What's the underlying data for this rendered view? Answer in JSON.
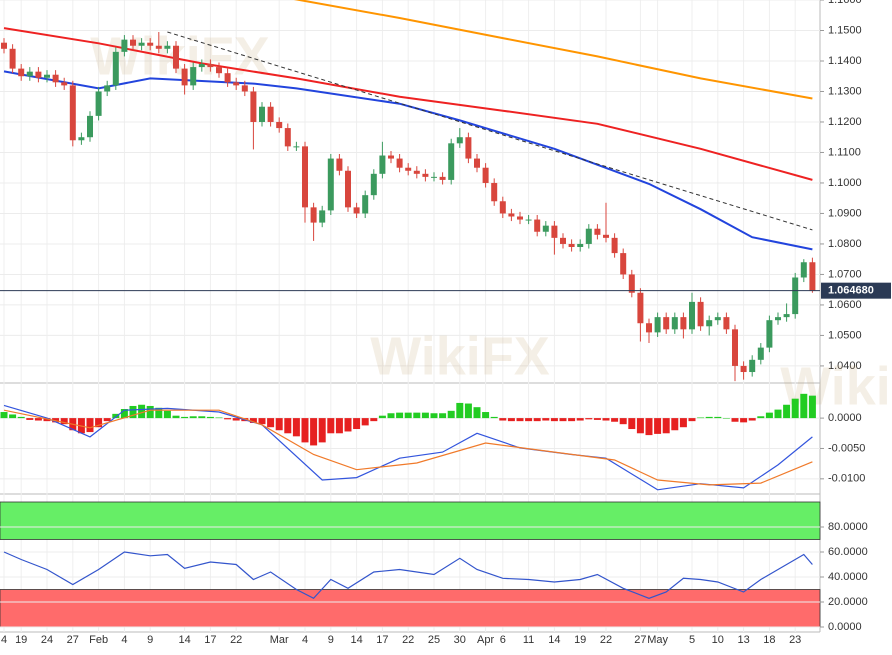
{
  "chart_data": [
    {
      "type": "candlestick",
      "categories": [
        "4",
        null,
        "19",
        null,
        null,
        "24",
        null,
        null,
        "27",
        null,
        null,
        "Feb",
        null,
        null,
        "4",
        null,
        null,
        "9",
        null,
        null,
        null,
        "14",
        null,
        null,
        "17",
        null,
        null,
        "22",
        null,
        null,
        null,
        null,
        "Mar",
        null,
        null,
        "4",
        null,
        null,
        "9",
        null,
        null,
        "14",
        null,
        null,
        "17",
        null,
        null,
        "22",
        null,
        null,
        "25",
        null,
        null,
        "30",
        null,
        null,
        "Apr",
        null,
        "6",
        null,
        null,
        "11",
        null,
        null,
        "14",
        null,
        null,
        "19",
        null,
        null,
        "22",
        null,
        null,
        null,
        "27",
        null,
        "May",
        null,
        null,
        null,
        "5",
        null,
        null,
        "10",
        null,
        null,
        "13",
        null,
        null,
        "18",
        null,
        null,
        "23",
        null,
        null
      ],
      "ohlc": [
        [
          1.146,
          1.1475,
          1.1425,
          1.144
        ],
        [
          1.144,
          1.1455,
          1.136,
          1.1375
        ],
        [
          1.1375,
          1.139,
          1.1335,
          1.135
        ],
        [
          1.135,
          1.138,
          1.1335,
          1.1365
        ],
        [
          1.1365,
          1.138,
          1.133,
          1.1345
        ],
        [
          1.1345,
          1.137,
          1.133,
          1.1355
        ],
        [
          1.1355,
          1.137,
          1.1315,
          1.133
        ],
        [
          1.133,
          1.1345,
          1.1305,
          1.132
        ],
        [
          1.132,
          1.1335,
          1.112,
          1.114
        ],
        [
          1.114,
          1.1165,
          1.1125,
          1.115
        ],
        [
          1.115,
          1.1235,
          1.1135,
          1.122
        ],
        [
          1.122,
          1.1315,
          1.1205,
          1.13
        ],
        [
          1.13,
          1.1335,
          1.1285,
          1.132
        ],
        [
          1.132,
          1.1445,
          1.1305,
          1.143
        ],
        [
          1.143,
          1.1485,
          1.1415,
          1.147
        ],
        [
          1.147,
          1.1485,
          1.1435,
          1.145
        ],
        [
          1.145,
          1.1475,
          1.1435,
          1.146
        ],
        [
          1.146,
          1.1475,
          1.1435,
          1.145
        ],
        [
          1.145,
          1.1495,
          1.1425,
          1.144
        ],
        [
          1.144,
          1.1465,
          1.1425,
          1.145
        ],
        [
          1.145,
          1.1465,
          1.136,
          1.1375
        ],
        [
          1.1375,
          1.139,
          1.129,
          1.132
        ],
        [
          1.132,
          1.1395,
          1.1305,
          1.138
        ],
        [
          1.138,
          1.1405,
          1.1365,
          1.139
        ],
        [
          1.139,
          1.1405,
          1.1365,
          1.138
        ],
        [
          1.138,
          1.1395,
          1.1345,
          1.136
        ],
        [
          1.136,
          1.1375,
          1.1315,
          1.133
        ],
        [
          1.133,
          1.1345,
          1.1305,
          1.132
        ],
        [
          1.132,
          1.1335,
          1.1285,
          1.13
        ],
        [
          1.13,
          1.1315,
          1.111,
          1.12
        ],
        [
          1.12,
          1.1265,
          1.1185,
          1.125
        ],
        [
          1.125,
          1.1265,
          1.1185,
          1.12
        ],
        [
          1.12,
          1.1215,
          1.1165,
          1.118
        ],
        [
          1.118,
          1.1195,
          1.1105,
          1.112
        ],
        [
          1.112,
          1.1135,
          1.1105,
          1.112
        ],
        [
          1.112,
          1.1135,
          1.087,
          1.092
        ],
        [
          1.092,
          1.0935,
          1.081,
          1.087
        ],
        [
          1.087,
          1.0925,
          1.0855,
          1.091
        ],
        [
          1.091,
          1.1095,
          1.0895,
          1.108
        ],
        [
          1.108,
          1.1095,
          1.1025,
          1.104
        ],
        [
          1.104,
          1.1055,
          1.0905,
          1.092
        ],
        [
          1.092,
          1.0935,
          1.0885,
          1.09
        ],
        [
          1.09,
          1.0975,
          1.0885,
          1.096
        ],
        [
          1.096,
          1.1045,
          1.0945,
          1.103
        ],
        [
          1.103,
          1.1135,
          1.1015,
          1.109
        ],
        [
          1.109,
          1.1105,
          1.1065,
          1.108
        ],
        [
          1.108,
          1.1095,
          1.1035,
          1.105
        ],
        [
          1.105,
          1.1065,
          1.1025,
          1.104
        ],
        [
          1.104,
          1.1055,
          1.1015,
          1.103
        ],
        [
          1.103,
          1.1045,
          1.1005,
          1.102
        ],
        [
          1.102,
          1.1035,
          1.1005,
          1.102
        ],
        [
          1.102,
          1.1035,
          1.0995,
          1.101
        ],
        [
          1.101,
          1.1145,
          1.0995,
          1.113
        ],
        [
          1.113,
          1.118,
          1.1115,
          1.115
        ],
        [
          1.115,
          1.1165,
          1.1065,
          1.108
        ],
        [
          1.108,
          1.1095,
          1.1035,
          1.105
        ],
        [
          1.105,
          1.1065,
          1.0985,
          1.1
        ],
        [
          1.1,
          1.1015,
          1.0925,
          1.094
        ],
        [
          1.094,
          1.0955,
          1.0885,
          1.09
        ],
        [
          1.09,
          1.0915,
          1.0875,
          1.089
        ],
        [
          1.089,
          1.0905,
          1.0865,
          1.088
        ],
        [
          1.088,
          1.0895,
          1.0865,
          1.088
        ],
        [
          1.088,
          1.0895,
          1.0825,
          1.084
        ],
        [
          1.084,
          1.0875,
          1.0825,
          1.086
        ],
        [
          1.086,
          1.0875,
          1.0765,
          1.082
        ],
        [
          1.082,
          1.0835,
          1.0785,
          1.08
        ],
        [
          1.08,
          1.0815,
          1.0775,
          1.079
        ],
        [
          1.079,
          1.0815,
          1.0775,
          1.08
        ],
        [
          1.08,
          1.0865,
          1.0785,
          1.085
        ],
        [
          1.085,
          1.0865,
          1.0815,
          1.083
        ],
        [
          1.083,
          1.0935,
          1.0805,
          1.082
        ],
        [
          1.082,
          1.0835,
          1.0755,
          1.077
        ],
        [
          1.077,
          1.0785,
          1.0685,
          1.07
        ],
        [
          1.07,
          1.0715,
          1.0625,
          1.064
        ],
        [
          1.064,
          1.0655,
          1.048,
          1.054
        ],
        [
          1.054,
          1.0555,
          1.0475,
          1.051
        ],
        [
          1.051,
          1.0575,
          1.0495,
          1.056
        ],
        [
          1.056,
          1.0575,
          1.0505,
          1.052
        ],
        [
          1.052,
          1.0575,
          1.0505,
          1.056
        ],
        [
          1.056,
          1.0575,
          1.049,
          1.052
        ],
        [
          1.052,
          1.064,
          1.0505,
          1.061
        ],
        [
          1.061,
          1.0625,
          1.0515,
          1.053
        ],
        [
          1.053,
          1.0565,
          1.05,
          1.055
        ],
        [
          1.055,
          1.0575,
          1.0535,
          1.056
        ],
        [
          1.056,
          1.0575,
          1.0505,
          1.052
        ],
        [
          1.052,
          1.0535,
          1.035,
          1.04
        ],
        [
          1.04,
          1.0415,
          1.0355,
          1.038
        ],
        [
          1.038,
          1.0435,
          1.0365,
          1.042
        ],
        [
          1.042,
          1.0475,
          1.0405,
          1.046
        ],
        [
          1.046,
          1.0565,
          1.0445,
          1.055
        ],
        [
          1.055,
          1.0575,
          1.0535,
          1.056
        ],
        [
          1.056,
          1.0605,
          1.0545,
          1.057
        ],
        [
          1.057,
          1.0705,
          1.0555,
          1.069
        ],
        [
          1.069,
          1.075,
          1.0675,
          1.074
        ],
        [
          1.074,
          1.0755,
          1.064,
          1.06468
        ]
      ],
      "up_color": "#3b9a5e",
      "down_color": "#d8463d",
      "lines": [
        {
          "color": "#ff9500",
          "x": [
            33,
            46,
            58,
            69,
            81,
            94
          ],
          "values": [
            1.1607,
            1.1541,
            1.1475,
            1.1415,
            1.1343,
            1.1277
          ]
        },
        {
          "color": "#ee2222",
          "x": [
            0,
            11,
            23,
            34,
            46,
            58,
            69,
            81,
            94
          ],
          "values": [
            1.1508,
            1.1458,
            1.1392,
            1.1343,
            1.1283,
            1.1237,
            1.1194,
            1.1112,
            1.101
          ]
        },
        {
          "color": "#2244dd",
          "x": [
            0,
            11,
            17,
            29,
            34,
            46,
            53,
            64,
            75,
            81,
            87,
            94
          ],
          "values": [
            1.1366,
            1.131,
            1.1343,
            1.1326,
            1.131,
            1.126,
            1.1205,
            1.1112,
            1.0997,
            1.0914,
            1.0822,
            1.0782
          ]
        }
      ],
      "trendline": {
        "x": [
          19,
          94
        ],
        "values": [
          1.1495,
          1.0846
        ]
      },
      "last_price": {
        "value": 1.06468,
        "label": "1.064680"
      },
      "watermark": "WikiFX",
      "ylim": [
        1.0344,
        1.16
      ],
      "yticks": [
        {
          "value": 1.04,
          "label": "1.0400"
        },
        {
          "value": 1.05,
          "label": "1.0500"
        },
        {
          "value": 1.06,
          "label": "1.0600"
        },
        {
          "value": 1.07,
          "label": "1.0700"
        },
        {
          "value": 1.08,
          "label": "1.0800"
        },
        {
          "value": 1.09,
          "label": "1.0900"
        },
        {
          "value": 1.1,
          "label": "1.1000"
        },
        {
          "value": 1.11,
          "label": "1.1100"
        },
        {
          "value": 1.12,
          "label": "1.1200"
        },
        {
          "value": 1.13,
          "label": "1.1300"
        },
        {
          "value": 1.14,
          "label": "1.1400"
        },
        {
          "value": 1.15,
          "label": "1.1500"
        },
        {
          "value": 1.16,
          "label": "1.1600"
        }
      ],
      "grid": true
    },
    {
      "type": "macd",
      "histogram": [
        0.001,
        0.0006,
        0.0002,
        -0.0003,
        -0.0004,
        -0.0005,
        -0.0007,
        -0.001,
        -0.002,
        -0.0025,
        -0.0023,
        -0.0015,
        -0.0005,
        0.0007,
        0.0015,
        0.002,
        0.0022,
        0.002,
        0.0017,
        0.0012,
        0.0004,
        0.0002,
        0.0003,
        0.0003,
        0.0002,
        0.0001,
        -0.0002,
        -0.0004,
        -0.0005,
        -0.0008,
        -0.001,
        -0.0015,
        -0.002,
        -0.0025,
        -0.003,
        -0.004,
        -0.0045,
        -0.004,
        -0.0025,
        -0.0025,
        -0.0022,
        -0.0018,
        -0.0012,
        -0.0005,
        0.0004,
        0.0008,
        0.0009,
        0.0009,
        0.0009,
        0.0009,
        0.0008,
        0.0008,
        0.0012,
        0.0025,
        0.0024,
        0.0018,
        0.001,
        0.0002,
        -0.0004,
        -0.0005,
        -0.0005,
        -0.0005,
        -0.0005,
        -0.0004,
        -0.0005,
        -0.0005,
        -0.0005,
        -0.0004,
        -0.0002,
        -0.0003,
        -0.0004,
        -0.0006,
        -0.001,
        -0.0018,
        -0.0025,
        -0.0028,
        -0.0026,
        -0.0025,
        -0.002,
        -0.0015,
        -0.0005,
        0.0001,
        0.0002,
        0.0002,
        0.0,
        -0.0006,
        -0.0007,
        -0.0004,
        0.0003,
        0.0009,
        0.0014,
        0.0022,
        0.0032,
        0.004,
        0.0037
      ],
      "up_color": "#22cc22",
      "down_color": "#e62020",
      "lines": [
        {
          "color": "#3355dd",
          "x": [
            0,
            5,
            10,
            14,
            19,
            25,
            30,
            37,
            41,
            46,
            51,
            55,
            60,
            66,
            70,
            76,
            81,
            86,
            90,
            94
          ],
          "values": [
            0.0021,
            0,
            -0.0031,
            0.0013,
            0.0016,
            0.001,
            -0.0011,
            -0.0102,
            -0.0098,
            -0.0066,
            -0.0056,
            -0.0025,
            -0.0049,
            -0.006,
            -0.0066,
            -0.0118,
            -0.0108,
            -0.0115,
            -0.0077,
            -0.0031
          ]
        },
        {
          "color": "#f07a2a",
          "x": [
            0,
            10,
            17,
            25,
            30,
            36,
            41,
            48,
            56,
            64,
            71,
            76,
            82,
            88,
            94
          ],
          "values": [
            0.0013,
            -0.0016,
            0.0013,
            0.0013,
            -0.0011,
            -0.006,
            -0.0085,
            -0.0074,
            -0.0041,
            -0.0056,
            -0.0069,
            -0.0102,
            -0.011,
            -0.0107,
            -0.0072
          ]
        }
      ],
      "ylim": [
        -0.0125,
        0.0043
      ],
      "yticks": [
        {
          "value": 0,
          "label": "0.0000"
        },
        {
          "value": -0.005,
          "label": "-0.0050"
        },
        {
          "value": -0.01,
          "label": "-0.0100"
        }
      ]
    },
    {
      "type": "rsi",
      "lines": [
        {
          "color": "#3355cc",
          "x": [
            0,
            2,
            5,
            8,
            11,
            14,
            17,
            19,
            21,
            24,
            27,
            29,
            31,
            34,
            36,
            38,
            40,
            43,
            46,
            50,
            53,
            55,
            58,
            61,
            64,
            67,
            69,
            72,
            75,
            77,
            79,
            81,
            83,
            86,
            88,
            90,
            93,
            94
          ],
          "values": [
            60,
            54,
            46,
            34,
            46,
            60,
            57,
            58,
            47,
            52,
            50,
            38,
            44,
            30,
            23,
            38,
            31,
            44,
            46,
            42,
            55,
            46,
            39,
            38,
            36,
            38,
            42,
            31,
            23,
            28,
            39,
            38,
            36,
            28,
            38,
            46,
            58,
            50
          ]
        }
      ],
      "bands": [
        {
          "range": [
            70,
            100
          ],
          "color": "#66ee66"
        },
        {
          "range": [
            0,
            30
          ],
          "color": "#ff6b6b"
        }
      ],
      "ylim": [
        -4,
        100
      ],
      "yticks": [
        {
          "value": 0,
          "label": "0.0000"
        },
        {
          "value": 20,
          "label": "20.0000"
        },
        {
          "value": 40,
          "label": "40.0000"
        },
        {
          "value": 60,
          "label": "60.0000"
        },
        {
          "value": 80,
          "label": "80.0000"
        }
      ]
    }
  ]
}
